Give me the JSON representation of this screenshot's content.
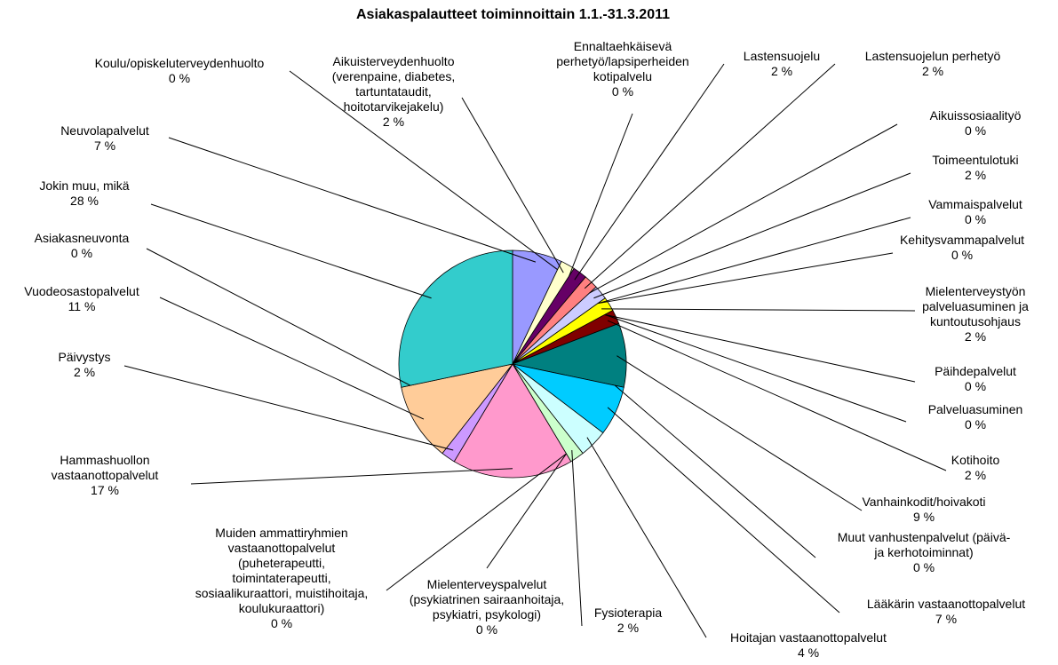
{
  "chart_data": {
    "type": "pie",
    "title": "Asiakaspalautteet toiminnoittain 1.1.-31.3.2011",
    "categories": [
      "Neuvolapalvelut",
      "Koulu/opiskeluterveydenhuolto",
      "Aikuisterveydenhuolto\n(verenpaine, diabetes,\ntartuntataudit,\nhoitotarvikejakelu)",
      "Ennaltaehkäisevä\nperhetyö/lapsiperheiden\nkotipalvelu",
      "Lastensuojelu",
      "Lastensuojelun perhetyö",
      "Aikuissosiaalityö",
      "Toimeentulotuki",
      "Vammaispalvelut",
      "Kehitysvammapalvelut",
      "Mielenterveystyön\npalveluasuminen ja\nkuntoutusohjaus",
      "Päihdepalvelut",
      "Palveluasuminen",
      "Kotihoito",
      "Vanhainkodit/hoivakoti",
      "Muut vanhustenpalvelut (päivä-\nja kerhotoiminnat)",
      "Lääkärin vastaanottopalvelut",
      "Hoitajan vastaanottopalvelut",
      "Fysioterapia",
      "Mielenterveyspalvelut\n(psykiatrinen sairaanhoitaja,\npsykiatri, psykologi)",
      "Muiden ammattiryhmien\nvastaanottopalvelut\n(puheterapeutti,\ntoimintaterapeutti,\nsosiaalikuraattori, muistihoitaja,\nkoulukuraattori)",
      "Hammashuollon\nvastaanottopalvelut",
      "Päivystys",
      "Vuodeosastopalvelut",
      "Asiakasneuvonta",
      "Jokin muu, mikä"
    ],
    "values": [
      7,
      0,
      2,
      0,
      2,
      2,
      0,
      2,
      0,
      0,
      2,
      0,
      0,
      2,
      9,
      0,
      7,
      4,
      2,
      0,
      0,
      17,
      2,
      11,
      0,
      28
    ],
    "value_labels": [
      "7 %",
      "0 %",
      "2 %",
      "0 %",
      "2 %",
      "2 %",
      "0 %",
      "2 %",
      "0 %",
      "0 %",
      "2 %",
      "0 %",
      "0 %",
      "2 %",
      "9 %",
      "0 %",
      "7 %",
      "4 %",
      "2 %",
      "0 %",
      "0 %",
      "17 %",
      "2 %",
      "11 %",
      "0 %",
      "28 %"
    ],
    "colors": [
      "#9999ff",
      "#993366",
      "#ffffcc",
      "#ccffff",
      "#660066",
      "#ff8080",
      "#0066cc",
      "#ccccff",
      "#000080",
      "#ff00ff",
      "#ffff00",
      "#00ffff",
      "#800080",
      "#800000",
      "#008080",
      "#0000ff",
      "#00ccff",
      "#ccffff",
      "#ccffcc",
      "#ffff99",
      "#99ccff",
      "#ff99cc",
      "#cc99ff",
      "#ffcc99",
      "#3366ff",
      "#33cccc"
    ]
  }
}
